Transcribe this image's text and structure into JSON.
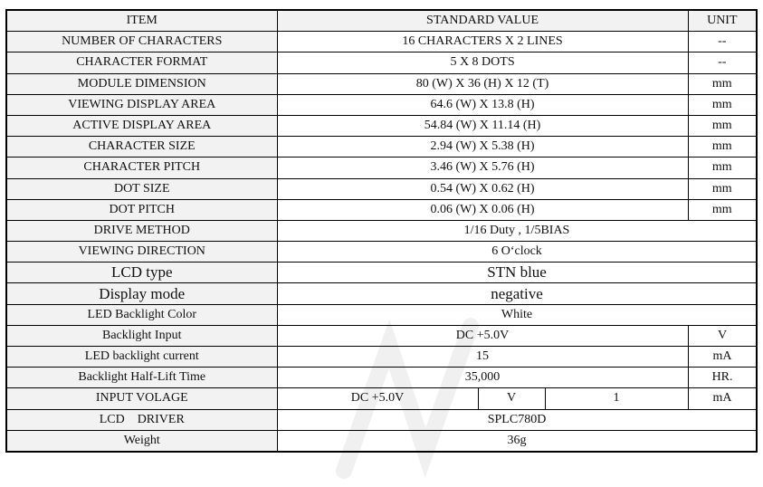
{
  "header": {
    "item": "ITEM",
    "value": "STANDARD VALUE",
    "unit": "UNIT"
  },
  "rows_top": [
    {
      "item": "NUMBER OF CHARACTERS",
      "value": "16 CHARACTERS X 2 LINES",
      "unit": "--"
    },
    {
      "item": "CHARACTER FORMAT",
      "value": "5 X 8 DOTS",
      "unit": "--"
    },
    {
      "item": "MODULE DIMENSION",
      "value": "80 (W) X 36 (H) X 12 (T)",
      "unit": "mm"
    },
    {
      "item": "VIEWING DISPLAY AREA",
      "value": "64.6 (W) X 13.8 (H)",
      "unit": "mm"
    },
    {
      "item": "ACTIVE DISPLAY AREA",
      "value": "54.84 (W) X 11.14 (H)",
      "unit": "mm"
    },
    {
      "item": "CHARACTER SIZE",
      "value": "2.94 (W) X 5.38 (H)",
      "unit": "mm"
    },
    {
      "item": "CHARACTER PITCH",
      "value": "3.46 (W) X 5.76 (H)",
      "unit": "mm"
    },
    {
      "item": "DOT SIZE",
      "value": "0.54 (W) X 0.62 (H)",
      "unit": "mm"
    },
    {
      "item": "DOT PITCH",
      "value": "0.06 (W) X 0.06 (H)",
      "unit": "mm"
    }
  ],
  "rows_full": [
    {
      "item": "DRIVE METHOD",
      "value": "1/16 Duty , 1/5BIAS"
    },
    {
      "item": "VIEWING DIRECTION",
      "value": "6 O‘clock"
    },
    {
      "item": "LCD type",
      "value": "STN blue"
    },
    {
      "item": "Display mode",
      "value": "negative"
    },
    {
      "item": "LED Backlight Color",
      "value": "White"
    }
  ],
  "rows_backlight": [
    {
      "item": "Backlight Input",
      "value": "DC +5.0V",
      "unit": "V"
    },
    {
      "item": "LED backlight current",
      "value": "15",
      "unit": "mA"
    },
    {
      "item": "Backlight Half-Lift Time",
      "value": "35,000",
      "unit": "HR."
    }
  ],
  "input_voltage": {
    "item": "INPUT VOLAGE",
    "value": "DC +5.0V",
    "v_unit": "V",
    "current": "1",
    "unit": "mA"
  },
  "rows_bottom": [
    {
      "item": "LCD    DRIVER",
      "value": "SPLC780D"
    },
    {
      "item": "Weight",
      "value": "36g"
    }
  ]
}
